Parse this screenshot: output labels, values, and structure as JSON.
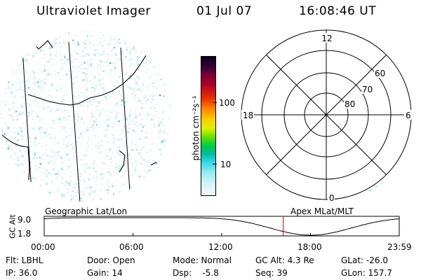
{
  "header": {
    "title": "Ultraviolet Imager",
    "date": "01 Jul 07",
    "time": "16:08:46 UT"
  },
  "colorbar": {
    "unit_label": "photon cm⁻²s⁻¹",
    "ticks": [
      "100",
      "10"
    ],
    "scale": "log"
  },
  "polar": {
    "mlt_labels": {
      "top": "12",
      "left": "18",
      "right": "6",
      "bottom": "0"
    },
    "lat_labels": [
      "60",
      "70",
      "80"
    ]
  },
  "timeline": {
    "left_title": "Geographic Lat/Lon",
    "right_title": "Apex MLat/MLT",
    "ylabel": "GC Alt",
    "ytick_top": "9.0",
    "ytick_bottom": "1.8",
    "xticks": [
      "00:00",
      "06:00",
      "12:00",
      "18:00",
      "23:59"
    ],
    "marker_color": "#cc0000"
  },
  "info": {
    "row1": [
      {
        "label": "Flt: LBHL"
      },
      {
        "label": "Door: Open"
      },
      {
        "label": "Mode: Normal"
      },
      {
        "label": "GC Alt: 4.3 Re"
      },
      {
        "label": "GLat: -26.0"
      }
    ],
    "row2": [
      {
        "label": "IP: 36.0"
      },
      {
        "label": "Gain: 14"
      },
      {
        "label": "Dsp:    -5.8"
      },
      {
        "label": "Seq: 39"
      },
      {
        "label": "GLon: 157.7"
      }
    ]
  }
}
